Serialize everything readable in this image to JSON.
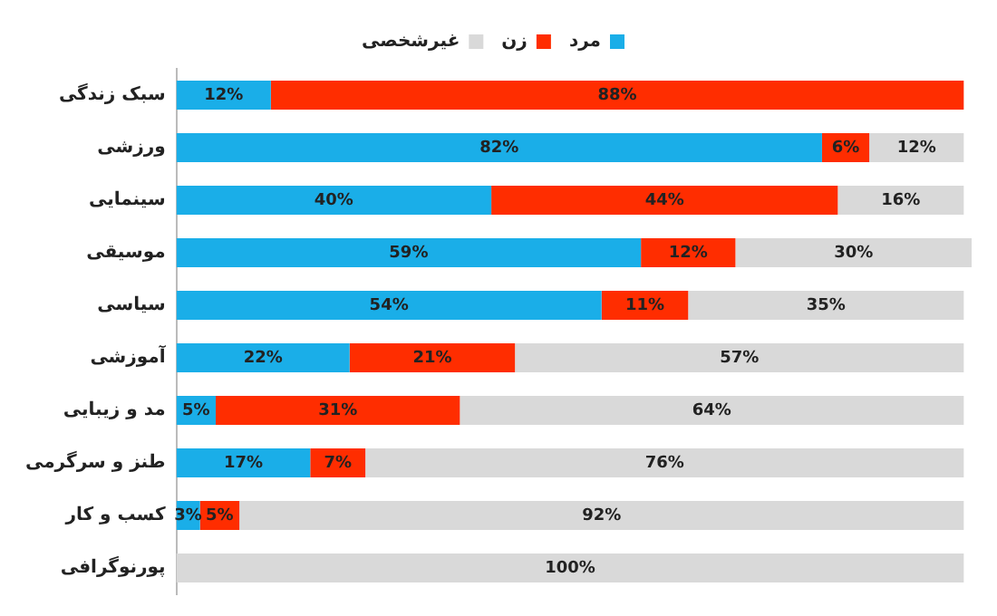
{
  "chart_data": {
    "type": "bar",
    "orientation": "horizontal",
    "stacked": true,
    "legend": "top",
    "tick_labels": "y",
    "categories": [
      "سبک زندگی",
      "ورزشی",
      "سینمایی",
      "موسیقی",
      "سیاسی",
      "آموزشی",
      "مد و زیبایی",
      "طنز و سرگرمی",
      "کسب و کار",
      "پورنوگرافی"
    ],
    "series": [
      {
        "name": "مرد",
        "color": "#1aaee8",
        "values": [
          12,
          82,
          40,
          59,
          54,
          22,
          5,
          17,
          3,
          0
        ],
        "value_labels": [
          "12%",
          "82%",
          "40%",
          "59%",
          "54%",
          "22%",
          "5%",
          "17%",
          "3%",
          null
        ]
      },
      {
        "name": "زن",
        "color": "#ff2d00",
        "values": [
          88,
          6,
          44,
          12,
          11,
          21,
          31,
          7,
          5,
          0
        ],
        "value_labels": [
          "88%",
          "6%",
          "44%",
          "12%",
          "11%",
          "21%",
          "31%",
          "7%",
          "5%",
          null
        ]
      },
      {
        "name": "غیرشخصی",
        "color": "#d9d9d9",
        "values": [
          0,
          12,
          16,
          30,
          35,
          57,
          64,
          76,
          92,
          100
        ],
        "value_labels": [
          null,
          "12%",
          "16%",
          "30%",
          "35%",
          "57%",
          "64%",
          "76%",
          "92%",
          "100%"
        ]
      }
    ]
  }
}
